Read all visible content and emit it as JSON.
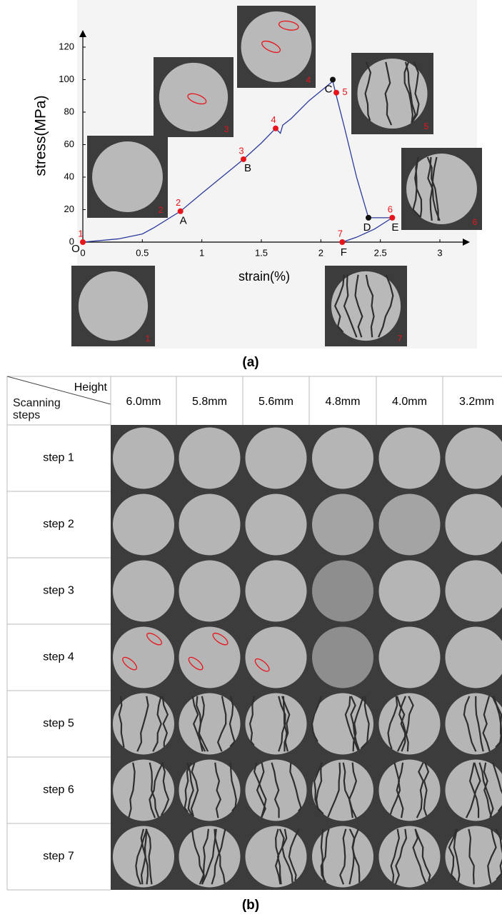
{
  "chart_data": {
    "type": "line",
    "xlabel": "strain(%)",
    "ylabel": "stress(MPa)",
    "xlim": [
      0,
      3.2
    ],
    "ylim": [
      0,
      129
    ],
    "xticks": [
      0,
      0.5,
      1,
      1.5,
      2,
      2.5,
      3
    ],
    "yticks": [
      0,
      20,
      40,
      60,
      80,
      100,
      120
    ],
    "series": [
      {
        "color": "#2b3a9c",
        "x": [
          0,
          0.3,
          0.5,
          0.6,
          0.82,
          1.0,
          1.2,
          1.35,
          1.5,
          1.62,
          1.66,
          1.68,
          1.75,
          1.9,
          2.1,
          2.12,
          2.2,
          2.3,
          2.4,
          2.6
        ],
        "values": [
          0,
          2,
          5,
          9,
          19,
          30,
          42,
          51,
          61,
          70,
          67,
          72,
          76,
          87,
          99,
          93,
          70,
          40,
          15,
          15
        ]
      },
      {
        "color": "#2b3a9c",
        "x": [
          2.18,
          2.3,
          2.45,
          2.6
        ],
        "values": [
          0,
          3,
          8,
          15
        ]
      }
    ],
    "points": [
      {
        "label": "1",
        "x": 0,
        "y": 0,
        "color": "#e8141b"
      },
      {
        "label": "2",
        "x": 0.82,
        "y": 19,
        "color": "#e8141b"
      },
      {
        "label": "3",
        "x": 1.35,
        "y": 51,
        "color": "#e8141b"
      },
      {
        "label": "4",
        "x": 1.62,
        "y": 70,
        "color": "#e8141b"
      },
      {
        "label": "5",
        "x": 2.13,
        "y": 92,
        "color": "#e8141b"
      },
      {
        "label": "6",
        "x": 2.6,
        "y": 15,
        "color": "#e8141b"
      },
      {
        "label": "7",
        "x": 2.18,
        "y": 0,
        "color": "#e8141b"
      }
    ],
    "letters": [
      {
        "label": "O",
        "x": 0,
        "y": 0
      },
      {
        "label": "A",
        "x": 0.82,
        "y": 19
      },
      {
        "label": "B",
        "x": 1.35,
        "y": 51
      },
      {
        "label": "C",
        "x": 2.1,
        "y": 100,
        "color": "#111111"
      },
      {
        "label": "D",
        "x": 2.4,
        "y": 15,
        "color": "#111111"
      },
      {
        "label": "E",
        "x": 2.6,
        "y": 15
      },
      {
        "label": "F",
        "x": 2.18,
        "y": 0
      }
    ],
    "insets": [
      "1",
      "2",
      "3",
      "4",
      "5",
      "6",
      "7"
    ]
  },
  "panel_labels": [
    "(a)",
    "(b)"
  ],
  "table": {
    "corner_top": "Height",
    "corner_bottom": "Scanning steps",
    "columns": [
      "6.0mm",
      "5.8mm",
      "5.6mm",
      "4.8mm",
      "4.0mm",
      "3.2mm"
    ],
    "rows": [
      "step 1",
      "step 2",
      "step 3",
      "step 4",
      "step 5",
      "step 6",
      "step 7"
    ]
  }
}
